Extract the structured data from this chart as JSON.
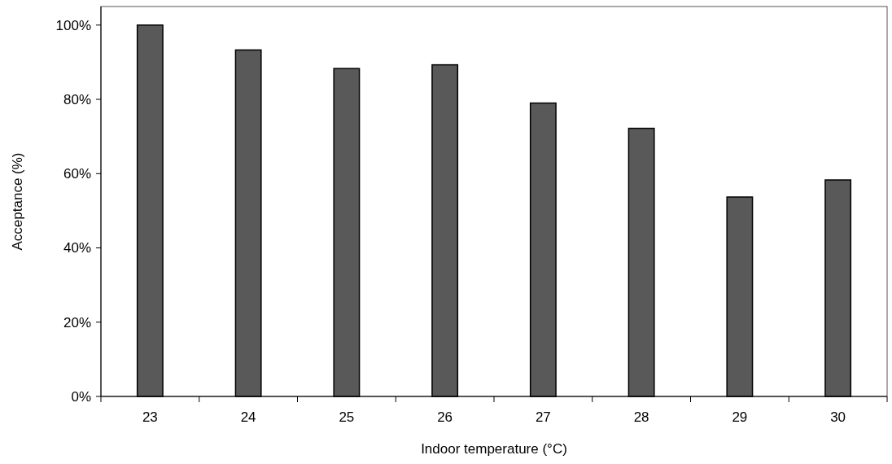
{
  "chart_data": {
    "type": "bar",
    "xlabel": "Indoor temperature (°C)",
    "ylabel": "Acceptance (%)",
    "categories": [
      "23",
      "24",
      "25",
      "26",
      "27",
      "28",
      "29",
      "30"
    ],
    "values": [
      100,
      93.3,
      88.3,
      89.3,
      79.0,
      72.2,
      53.7,
      58.3
    ],
    "color": "#595959",
    "ylim": [
      0,
      105
    ],
    "yticks": [
      {
        "value": 0,
        "label": "0%"
      },
      {
        "value": 20,
        "label": "20%"
      },
      {
        "value": 40,
        "label": "40%"
      },
      {
        "value": 60,
        "label": "60%"
      },
      {
        "value": 80,
        "label": "80%"
      },
      {
        "value": 100,
        "label": "100%"
      }
    ],
    "grid": false
  }
}
